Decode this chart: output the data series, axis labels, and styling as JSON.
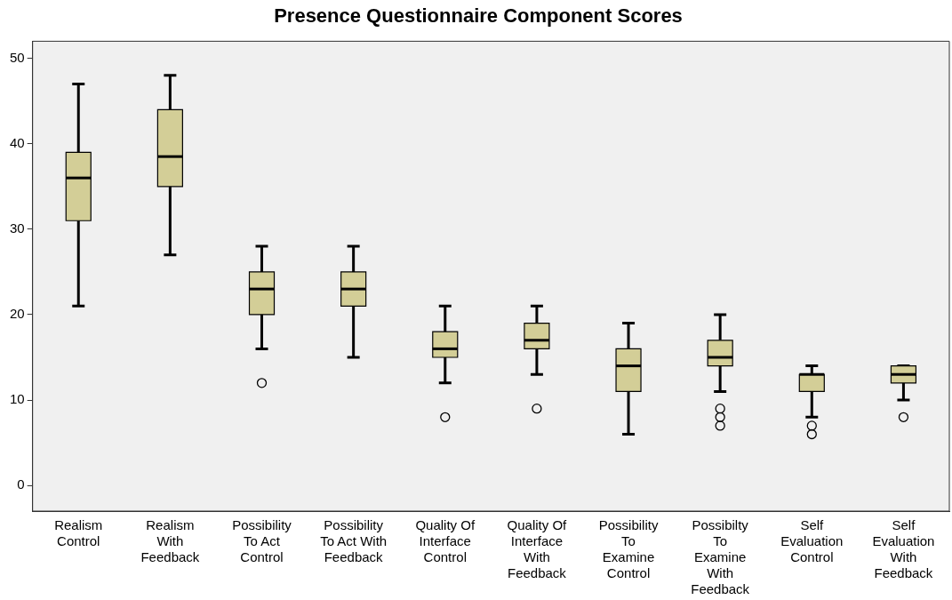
{
  "chart_data": {
    "type": "box",
    "title": "Presence Questionnaire Component Scores",
    "categories": [
      "Realism Control",
      "Realism With Feedback",
      "Possibility To Act Control",
      "Possibility To Act With Feedback",
      "Quality Of Interface Control",
      "Quality Of Interface With Feedback",
      "Possibility To Examine Control",
      "Possibilty To Examine With Feedback",
      "Self Evaluation Control",
      "Self Evaluation With Feedback"
    ],
    "color": "#d3ce97",
    "boxes": [
      {
        "low": 21,
        "q1": 31,
        "median": 36,
        "q3": 39,
        "high": 47
      },
      {
        "low": 27,
        "q1": 35,
        "median": 38.5,
        "q3": 44,
        "high": 48
      },
      {
        "low": 16,
        "q1": 20,
        "median": 23,
        "q3": 25,
        "high": 28,
        "outliers": [
          12
        ]
      },
      {
        "low": 15,
        "q1": 21,
        "median": 23,
        "q3": 25,
        "high": 28
      },
      {
        "low": 12,
        "q1": 15,
        "median": 16,
        "q3": 18,
        "high": 21,
        "outliers": [
          8
        ]
      },
      {
        "low": 13,
        "q1": 16,
        "median": 17,
        "q3": 19,
        "high": 21,
        "outliers": [
          9
        ]
      },
      {
        "low": 6,
        "q1": 11,
        "median": 14,
        "q3": 16,
        "high": 19
      },
      {
        "low": 11,
        "q1": 14,
        "median": 15,
        "q3": 17,
        "high": 20,
        "outliers": [
          9,
          8,
          7
        ]
      },
      {
        "low": 8,
        "q1": 11,
        "median": 13,
        "q3": 13,
        "high": 14,
        "outliers": [
          7,
          6
        ]
      },
      {
        "low": 10,
        "q1": 12,
        "median": 13,
        "q3": 14,
        "high": 14,
        "outliers": [
          8
        ]
      }
    ],
    "ylim": [
      -3,
      52
    ],
    "yticks": [
      0,
      10,
      20,
      30,
      40,
      50
    ],
    "grid": false,
    "legend": false
  }
}
